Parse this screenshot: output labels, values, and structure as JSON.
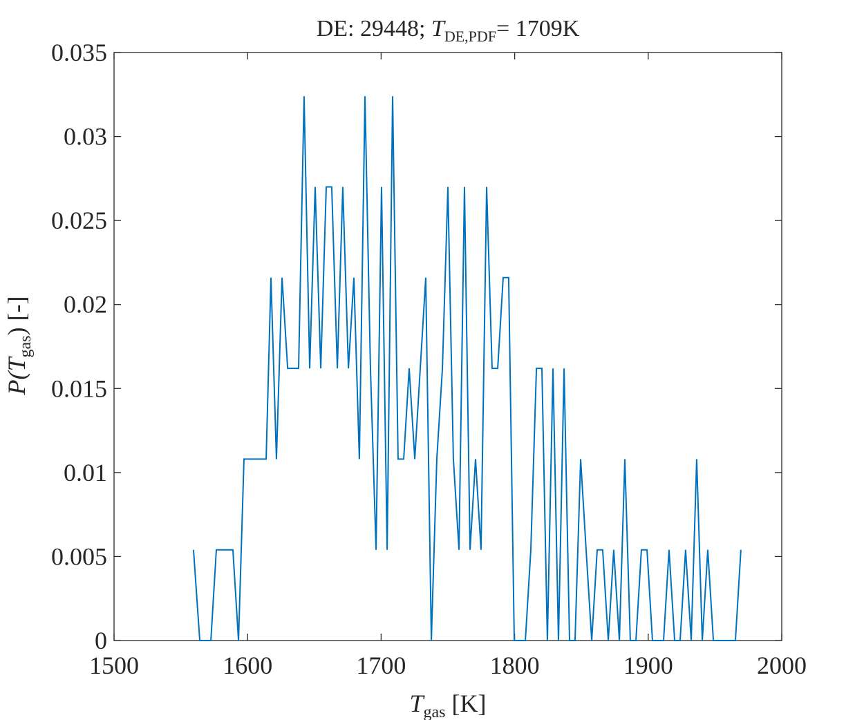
{
  "chart_data": {
    "type": "line",
    "title": {
      "prefix": "DE: 29448; ",
      "symbol": "T",
      "subscript": "DE,PDF",
      "suffix": "= 1709K"
    },
    "xlabel": {
      "symbol": "T",
      "subscript": "gas",
      "unit": " [K]"
    },
    "ylabel": {
      "prefix": "P(",
      "symbol": "T",
      "subscript": "gas",
      "suffix": ") [-]"
    },
    "xlim": [
      1500,
      2000
    ],
    "xticks": [
      1500,
      1600,
      1700,
      1800,
      1900,
      2000
    ],
    "ylim": [
      0,
      0.035
    ],
    "yticks": [
      0,
      0.005,
      0.01,
      0.015,
      0.02,
      0.025,
      0.03,
      0.035
    ],
    "series": [
      {
        "color": "#0072bd",
        "x": [
          1559.5,
          1564.2,
          1572.5,
          1576.6,
          1589,
          1593.2,
          1597.3,
          1613.9,
          1617.5,
          1621.6,
          1625.8,
          1630,
          1638.2,
          1642.3,
          1646.5,
          1650.6,
          1654.8,
          1658.9,
          1663,
          1667.2,
          1671.3,
          1675.5,
          1679.6,
          1683.7,
          1687.9,
          1692,
          1696.2,
          1700.3,
          1704.5,
          1708.6,
          1712.7,
          1716.9,
          1721,
          1725.2,
          1729.3,
          1733.4,
          1737.6,
          1741.7,
          1745.9,
          1750,
          1754.1,
          1758.3,
          1762.4,
          1766.6,
          1770.7,
          1774.8,
          1779,
          1783.1,
          1787.3,
          1791.4,
          1795.5,
          1799.7,
          1808,
          1812.1,
          1816.3,
          1820.4,
          1824.5,
          1828.7,
          1832.8,
          1837,
          1841.1,
          1845.2,
          1849.4,
          1853.5,
          1857.7,
          1861.8,
          1865.9,
          1870.1,
          1874.2,
          1878.4,
          1882.5,
          1886.6,
          1890.8,
          1894.9,
          1899.1,
          1903.2,
          1911.5,
          1915.6,
          1919.8,
          1923.9,
          1928,
          1932.2,
          1936.3,
          1940.5,
          1944.6,
          1948.8,
          1965.3,
          1969.4
        ],
        "values": [
          0.0054,
          0,
          0,
          0.0054,
          0.0054,
          0,
          0.0108,
          0.0108,
          0.0216,
          0.0108,
          0.0216,
          0.0162,
          0.0162,
          0.0324,
          0.0162,
          0.027,
          0.0162,
          0.027,
          0.027,
          0.0162,
          0.027,
          0.0162,
          0.0216,
          0.0108,
          0.0324,
          0.0162,
          0.0054,
          0.027,
          0.0054,
          0.0324,
          0.0108,
          0.0108,
          0.0162,
          0.0108,
          0.0162,
          0.0216,
          0,
          0.0108,
          0.0162,
          0.027,
          0.0108,
          0.0054,
          0.027,
          0.0054,
          0.0108,
          0.0054,
          0.027,
          0.0162,
          0.0162,
          0.0216,
          0.0216,
          0,
          0,
          0.0054,
          0.0162,
          0.0162,
          0,
          0.0162,
          0,
          0.0162,
          0,
          0,
          0.0108,
          0.0054,
          0,
          0.0054,
          0.0054,
          0,
          0.0054,
          0,
          0.0108,
          0,
          0,
          0.0054,
          0.0054,
          0,
          0,
          0.0054,
          0,
          0,
          0.0054,
          0,
          0.0108,
          0,
          0.0054,
          0,
          0,
          0.0054
        ]
      }
    ]
  }
}
